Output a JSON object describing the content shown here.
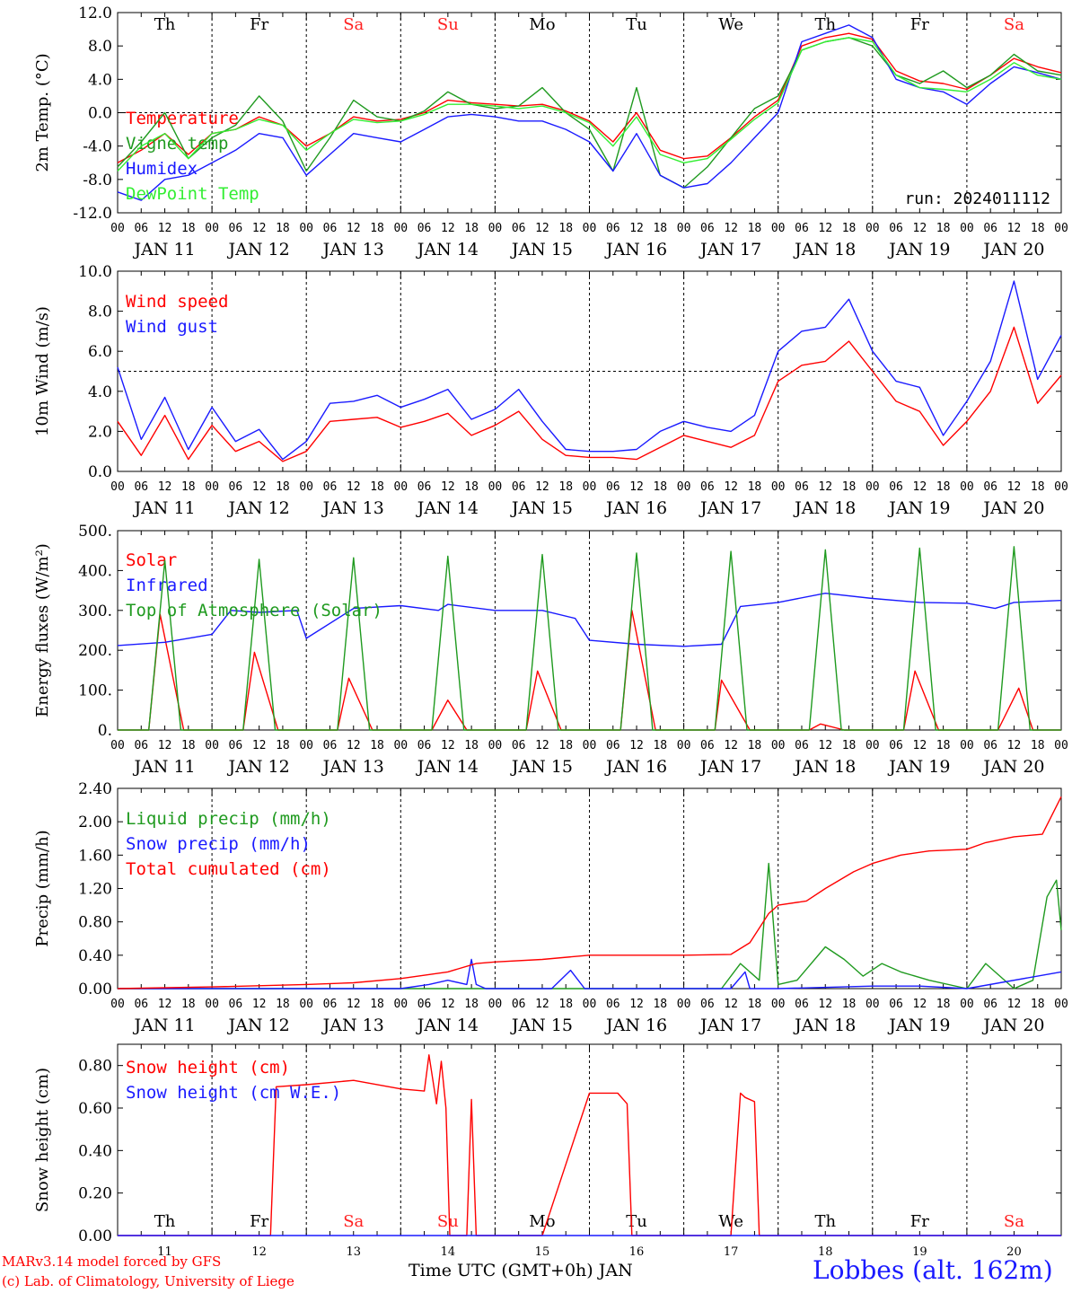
{
  "footer": {
    "model": "MARv3.14 model forced by GFS",
    "copyright": "(c) Lab. of Climatology, University of Liege",
    "xlabel": "Time UTC (GMT+0h) JAN",
    "station": "Lobbes (alt. 162m)"
  },
  "days": {
    "weekdays": [
      "Th",
      "Fr",
      "Sa",
      "Su",
      "Mo",
      "Tu",
      "We",
      "Th",
      "Fr",
      "Sa"
    ],
    "weekend_flags": [
      false,
      false,
      true,
      true,
      false,
      false,
      false,
      false,
      false,
      true
    ],
    "weekend_color": "#ff2020",
    "date_labels": [
      "JAN 11",
      "JAN 12",
      "JAN 13",
      "JAN 14",
      "JAN 15",
      "JAN 16",
      "JAN 17",
      "JAN 18",
      "JAN 19",
      "JAN 20"
    ],
    "day_numbers": [
      "11",
      "12",
      "13",
      "14",
      "15",
      "16",
      "17",
      "18",
      "19",
      "20"
    ],
    "hour_ticks": [
      "00",
      "06",
      "12",
      "18"
    ],
    "final_tick": "00"
  },
  "chart_data": [
    {
      "type": "line",
      "ylabel": "2m Temp. (°C)",
      "ylim": [
        -12,
        12
      ],
      "yticks": [
        "-12.0",
        "-8.0",
        "-4.0",
        "0.0",
        "4.0",
        "8.0",
        "12.0"
      ],
      "hline": 0,
      "annotation": "run: 2024011112",
      "show_weekdays": true,
      "x_unit": "days since JAN 11 00 UTC",
      "series": [
        {
          "name": "Temperature",
          "color": "#ff0000",
          "x": [
            0,
            0.25,
            0.5,
            0.75,
            1,
            1.25,
            1.5,
            1.75,
            2,
            2.25,
            2.5,
            2.75,
            3,
            3.25,
            3.5,
            3.75,
            4,
            4.25,
            4.5,
            4.75,
            5,
            5.25,
            5.5,
            5.75,
            6,
            6.25,
            6.5,
            6.75,
            7,
            7.25,
            7.5,
            7.75,
            8,
            8.25,
            8.5,
            8.75,
            9,
            9.25,
            9.5,
            9.75,
            10
          ],
          "y": [
            -6.0,
            -4.5,
            -2.5,
            -5.0,
            -2.5,
            -2.0,
            -0.5,
            -1.5,
            -4.0,
            -2.5,
            -0.5,
            -1.0,
            -0.8,
            0.0,
            1.5,
            1.2,
            1.0,
            0.8,
            1.0,
            0.2,
            -1.0,
            -3.5,
            0.0,
            -4.5,
            -5.5,
            -5.2,
            -3.0,
            -0.5,
            1.5,
            8.0,
            9.0,
            9.5,
            8.8,
            5.0,
            3.8,
            3.5,
            2.8,
            4.5,
            6.5,
            5.5,
            4.8
          ]
        },
        {
          "name": "Vigne temp",
          "color": "#1f9a1f",
          "x": [
            0,
            0.25,
            0.5,
            0.75,
            1,
            1.25,
            1.5,
            1.75,
            2,
            2.25,
            2.5,
            2.75,
            3,
            3.25,
            3.5,
            3.75,
            4,
            4.25,
            4.5,
            4.75,
            5,
            5.25,
            5.5,
            5.75,
            6,
            6.25,
            6.5,
            6.75,
            7,
            7.25,
            7.5,
            7.75,
            8,
            8.25,
            8.5,
            8.75,
            9,
            9.25,
            9.5,
            9.75,
            10
          ],
          "y": [
            -6.5,
            -3.5,
            0.0,
            -5.5,
            -3.0,
            -1.5,
            2.0,
            -1.0,
            -7.0,
            -3.0,
            1.5,
            -0.5,
            -1.0,
            0.2,
            2.5,
            1.0,
            0.5,
            0.8,
            3.0,
            0.0,
            -2.0,
            -7.0,
            3.0,
            -7.5,
            -9.0,
            -6.5,
            -3.0,
            0.5,
            2.0,
            7.5,
            8.5,
            9.0,
            8.0,
            4.5,
            3.5,
            5.0,
            3.0,
            4.5,
            7.0,
            5.0,
            4.5
          ]
        },
        {
          "name": "Humidex",
          "color": "#1a1aff",
          "x": [
            0,
            0.25,
            0.5,
            0.75,
            1,
            1.25,
            1.5,
            1.75,
            2,
            2.25,
            2.5,
            2.75,
            3,
            3.25,
            3.5,
            3.75,
            4,
            4.25,
            4.5,
            4.75,
            5,
            5.25,
            5.5,
            5.75,
            6,
            6.25,
            6.5,
            6.75,
            7,
            7.25,
            7.5,
            7.75,
            8,
            8.25,
            8.5,
            8.75,
            9,
            9.25,
            9.5,
            9.75,
            10
          ],
          "y": [
            -9.5,
            -10.5,
            -8.0,
            -7.5,
            -6.0,
            -4.5,
            -2.5,
            -3.0,
            -7.5,
            -5.0,
            -2.5,
            -3.0,
            -3.5,
            -2.0,
            -0.5,
            -0.2,
            -0.5,
            -1.0,
            -1.0,
            -2.0,
            -3.5,
            -7.0,
            -2.5,
            -7.5,
            -9.0,
            -8.5,
            -6.0,
            -3.0,
            0.0,
            8.5,
            9.5,
            10.5,
            9.0,
            4.0,
            3.0,
            2.5,
            1.0,
            3.5,
            5.5,
            4.8,
            4.0
          ]
        },
        {
          "name": "DewPoint Temp",
          "color": "#33ee33",
          "x": [
            0,
            0.25,
            0.5,
            0.75,
            1,
            1.25,
            1.5,
            1.75,
            2,
            2.25,
            2.5,
            2.75,
            3,
            3.25,
            3.5,
            3.75,
            4,
            4.25,
            4.5,
            4.75,
            5,
            5.25,
            5.5,
            5.75,
            6,
            6.25,
            6.5,
            6.75,
            7,
            7.25,
            7.5,
            7.75,
            8,
            8.25,
            8.5,
            8.75,
            9,
            9.25,
            9.5,
            9.75,
            10
          ],
          "y": [
            -7.0,
            -4.0,
            -2.5,
            -5.5,
            -2.5,
            -2.0,
            -0.8,
            -1.5,
            -4.5,
            -2.5,
            -0.8,
            -1.2,
            -1.0,
            -0.2,
            1.0,
            1.0,
            0.8,
            0.5,
            0.8,
            0.0,
            -1.2,
            -4.0,
            -0.5,
            -5.0,
            -6.0,
            -5.5,
            -3.2,
            -0.8,
            1.2,
            7.5,
            8.5,
            9.0,
            8.5,
            4.5,
            3.0,
            2.8,
            2.5,
            4.0,
            6.0,
            4.5,
            4.0
          ]
        }
      ]
    },
    {
      "type": "line",
      "ylabel": "10m Wind (m/s)",
      "ylim": [
        0,
        10
      ],
      "yticks": [
        "0.0",
        "2.0",
        "4.0",
        "6.0",
        "8.0",
        "10.0"
      ],
      "hline": 5,
      "series": [
        {
          "name": "Wind speed",
          "color": "#ff0000",
          "x": [
            0,
            0.25,
            0.5,
            0.75,
            1,
            1.25,
            1.5,
            1.75,
            2,
            2.25,
            2.5,
            2.75,
            3,
            3.25,
            3.5,
            3.75,
            4,
            4.25,
            4.5,
            4.75,
            5,
            5.25,
            5.5,
            5.75,
            6,
            6.25,
            6.5,
            6.75,
            7,
            7.25,
            7.5,
            7.75,
            8,
            8.25,
            8.5,
            8.75,
            9,
            9.25,
            9.5,
            9.75,
            10
          ],
          "y": [
            2.5,
            0.8,
            2.8,
            0.6,
            2.3,
            1.0,
            1.5,
            0.5,
            1.0,
            2.5,
            2.6,
            2.7,
            2.2,
            2.5,
            2.9,
            1.8,
            2.3,
            3.0,
            1.6,
            0.8,
            0.7,
            0.7,
            0.6,
            1.2,
            1.8,
            1.5,
            1.2,
            1.8,
            4.5,
            5.3,
            5.5,
            6.5,
            5.0,
            3.5,
            3.0,
            1.3,
            2.5,
            4.0,
            7.2,
            3.4,
            4.8
          ]
        },
        {
          "name": "Wind gust",
          "color": "#1a1aff",
          "x": [
            0,
            0.25,
            0.5,
            0.75,
            1,
            1.25,
            1.5,
            1.75,
            2,
            2.25,
            2.5,
            2.75,
            3,
            3.25,
            3.5,
            3.75,
            4,
            4.25,
            4.5,
            4.75,
            5,
            5.25,
            5.5,
            5.75,
            6,
            6.25,
            6.5,
            6.75,
            7,
            7.25,
            7.5,
            7.75,
            8,
            8.25,
            8.5,
            8.75,
            9,
            9.25,
            9.5,
            9.75,
            10
          ],
          "y": [
            5.2,
            1.6,
            3.7,
            1.1,
            3.2,
            1.5,
            2.1,
            0.6,
            1.5,
            3.4,
            3.5,
            3.8,
            3.2,
            3.6,
            4.1,
            2.6,
            3.1,
            4.1,
            2.5,
            1.1,
            1.0,
            1.0,
            1.1,
            2.0,
            2.5,
            2.2,
            2.0,
            2.8,
            6.0,
            7.0,
            7.2,
            8.6,
            6.0,
            4.5,
            4.2,
            1.8,
            3.5,
            5.5,
            9.5,
            4.6,
            6.8
          ]
        }
      ]
    },
    {
      "type": "line",
      "ylabel": "Energy fluxes (W/m²)",
      "ylim": [
        0,
        500
      ],
      "yticks": [
        "0.",
        "100.",
        "200.",
        "300.",
        "400.",
        "500."
      ],
      "series": [
        {
          "name": "Solar",
          "color": "#ff0000",
          "x": [
            0,
            0.33,
            0.45,
            0.7,
            1,
            1.33,
            1.45,
            1.7,
            2,
            2.33,
            2.45,
            2.7,
            3,
            3.33,
            3.5,
            3.7,
            4,
            4.33,
            4.45,
            4.7,
            5,
            5.33,
            5.45,
            5.7,
            6,
            6.33,
            6.4,
            6.7,
            7,
            7.33,
            7.45,
            7.7,
            8,
            8.33,
            8.45,
            8.7,
            9,
            9.33,
            9.55,
            9.7,
            10
          ],
          "y": [
            0,
            0,
            290,
            0,
            0,
            0,
            195,
            0,
            0,
            0,
            130,
            0,
            0,
            0,
            75,
            0,
            0,
            0,
            148,
            0,
            0,
            0,
            300,
            0,
            0,
            0,
            125,
            0,
            0,
            0,
            15,
            0,
            0,
            0,
            148,
            0,
            0,
            0,
            105,
            0,
            0
          ]
        },
        {
          "name": "Infrared",
          "color": "#1a1aff",
          "x": [
            0,
            0.5,
            1,
            1.2,
            1.5,
            1.9,
            2,
            2.5,
            3,
            3.4,
            3.5,
            4,
            4.5,
            4.85,
            5,
            5.5,
            6,
            6.4,
            6.6,
            7,
            7.5,
            8,
            8.5,
            9,
            9.3,
            9.5,
            10
          ],
          "y": [
            212,
            220,
            240,
            300,
            295,
            300,
            230,
            305,
            312,
            300,
            315,
            300,
            300,
            280,
            225,
            215,
            210,
            215,
            310,
            320,
            343,
            330,
            320,
            318,
            305,
            320,
            325
          ]
        },
        {
          "name": "Top of Atmosphere (Solar)",
          "color": "#1f9a1f",
          "x": [
            0,
            0.33,
            0.5,
            0.67,
            1,
            1.33,
            1.5,
            1.67,
            2,
            2.33,
            2.5,
            2.67,
            3,
            3.33,
            3.5,
            3.67,
            4,
            4.33,
            4.5,
            4.67,
            5,
            5.33,
            5.5,
            5.67,
            6,
            6.33,
            6.5,
            6.67,
            7,
            7.33,
            7.5,
            7.67,
            8,
            8.33,
            8.5,
            8.67,
            9,
            9.33,
            9.5,
            9.67,
            10
          ],
          "y": [
            0,
            0,
            425,
            0,
            0,
            0,
            428,
            0,
            0,
            0,
            432,
            0,
            0,
            0,
            436,
            0,
            0,
            0,
            440,
            0,
            0,
            0,
            444,
            0,
            0,
            0,
            448,
            0,
            0,
            0,
            452,
            0,
            0,
            0,
            456,
            0,
            0,
            0,
            460,
            0,
            0
          ]
        }
      ]
    },
    {
      "type": "line",
      "ylabel": "Precip (mm/h)",
      "ylim": [
        0,
        2.4
      ],
      "yticks": [
        "0.00",
        "0.40",
        "0.80",
        "1.20",
        "1.60",
        "2.00",
        "2.40"
      ],
      "series": [
        {
          "name": "Liquid precip (mm/h)",
          "color": "#1f9a1f",
          "x": [
            0,
            5.5,
            6.4,
            6.6,
            6.8,
            6.9,
            7.0,
            7.2,
            7.5,
            7.7,
            7.9,
            8.1,
            8.3,
            8.6,
            9,
            9.2,
            9.5,
            9.7,
            9.85,
            9.95,
            10
          ],
          "y": [
            0,
            0,
            0,
            0.3,
            0.1,
            1.5,
            0.05,
            0.1,
            0.5,
            0.35,
            0.15,
            0.3,
            0.2,
            0.1,
            0,
            0.3,
            0,
            0.1,
            1.1,
            1.3,
            0.7
          ]
        },
        {
          "name": "Snow precip (mm/h)",
          "color": "#1a1aff",
          "x": [
            0,
            3.0,
            3.3,
            3.5,
            3.7,
            3.75,
            3.8,
            3.9,
            4,
            4.6,
            4.8,
            4.95,
            5,
            6.5,
            6.65,
            6.7,
            7,
            8,
            8.5,
            9,
            10
          ],
          "y": [
            0,
            0,
            0.05,
            0.1,
            0.05,
            0.35,
            0.05,
            0,
            0,
            0,
            0.22,
            0,
            0,
            0,
            0.2,
            0,
            0,
            0.03,
            0.03,
            0,
            0.2
          ]
        },
        {
          "name": "Total cumulated (cm)",
          "color": "#ff0000",
          "x": [
            0,
            1,
            2,
            2.5,
            3,
            3.5,
            3.8,
            4,
            4.5,
            5,
            5.5,
            6,
            6.5,
            6.7,
            6.9,
            7,
            7.3,
            7.5,
            7.8,
            8,
            8.3,
            8.6,
            9,
            9.2,
            9.5,
            9.8,
            10
          ],
          "y": [
            0,
            0.02,
            0.05,
            0.07,
            0.12,
            0.2,
            0.3,
            0.32,
            0.35,
            0.4,
            0.4,
            0.4,
            0.41,
            0.55,
            0.9,
            1.0,
            1.05,
            1.2,
            1.4,
            1.5,
            1.6,
            1.65,
            1.67,
            1.75,
            1.82,
            1.85,
            2.3
          ]
        }
      ]
    },
    {
      "type": "line",
      "ylabel": "Snow height (cm)",
      "ylim": [
        0,
        0.9
      ],
      "yticks": [
        "0.00",
        "0.20",
        "0.40",
        "0.60",
        "0.80"
      ],
      "show_weekdays": true,
      "weekday_position": "bottom",
      "series": [
        {
          "name": "Snow height (cm)",
          "color": "#ff0000",
          "x": [
            0,
            1.62,
            1.68,
            2,
            2.5,
            3,
            3.25,
            3.3,
            3.38,
            3.43,
            3.48,
            3.52,
            3.7,
            3.75,
            3.8,
            4.0,
            4.5,
            5.0,
            5.3,
            5.4,
            5.45,
            6.5,
            6.6,
            6.65,
            6.75,
            6.8,
            10
          ],
          "y": [
            0,
            0,
            0.7,
            0.71,
            0.73,
            0.69,
            0.68,
            0.85,
            0.62,
            0.82,
            0.6,
            0,
            0,
            0.64,
            0,
            0,
            0,
            0.67,
            0.67,
            0.62,
            0,
            0,
            0.67,
            0.65,
            0.63,
            0,
            0
          ]
        },
        {
          "name": "Snow height (cm W.E.)",
          "color": "#1a1aff",
          "x": [
            0,
            10
          ],
          "y": [
            0,
            0
          ]
        }
      ]
    }
  ]
}
